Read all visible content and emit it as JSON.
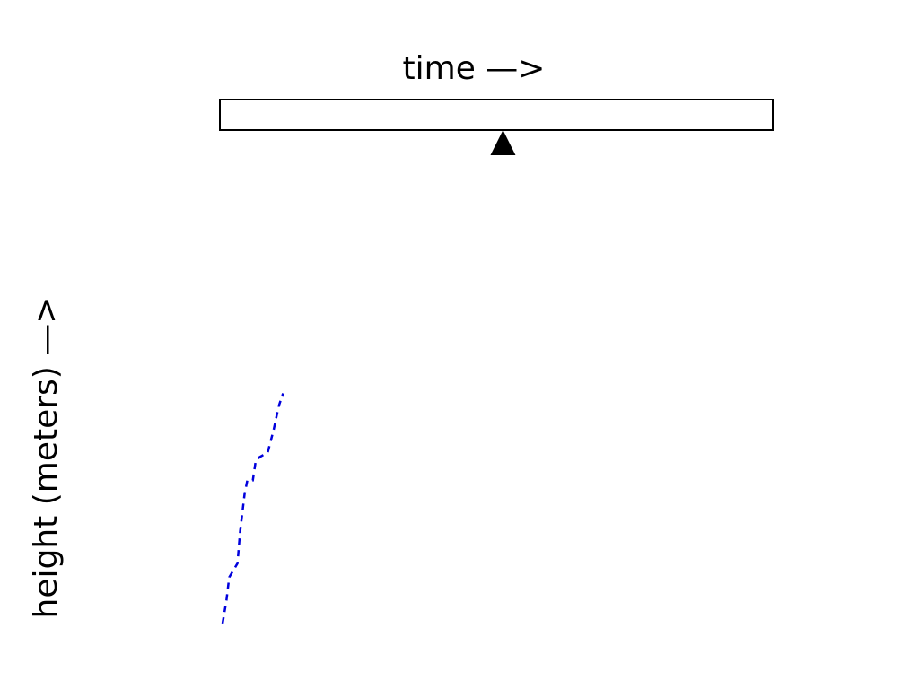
{
  "chart_data": {
    "type": "line",
    "title": "",
    "xlabel": "time —>",
    "ylabel": "height (meters) —>",
    "grid": false,
    "legend": "none",
    "xlim": [
      0,
      10
    ],
    "ylim": [
      0,
      10
    ],
    "timeline": {
      "current": 0.35,
      "marker": "triangle-up",
      "marker_color": "#000000"
    },
    "series": [
      {
        "style": "dashed",
        "color": "#0000dd",
        "x": [
          0.0,
          0.07,
          0.12,
          0.22,
          0.27,
          0.32,
          0.4,
          0.45,
          0.55,
          0.6,
          0.67,
          0.82,
          0.93,
          1.02,
          1.1
        ],
        "y": [
          0.0,
          0.5,
          1.0,
          1.2,
          1.3,
          2.0,
          2.8,
          3.1,
          3.1,
          3.5,
          3.6,
          3.7,
          4.2,
          4.7,
          4.98
        ]
      }
    ]
  }
}
